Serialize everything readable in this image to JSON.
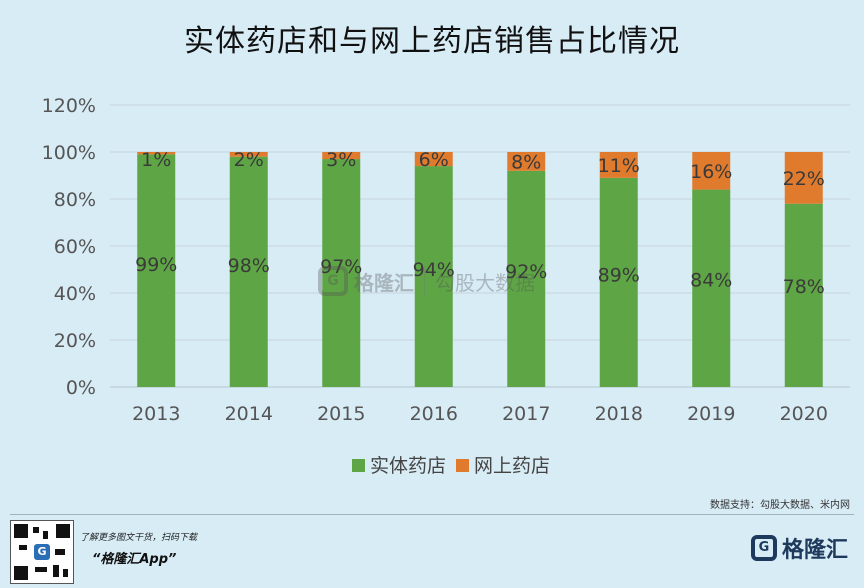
{
  "title": "实体药店和与网上药店销售占比情况",
  "source_note": "数据支持：勾股大数据、米内网",
  "promo": {
    "line1": "了解更多图文干货，扫码下载",
    "line2": "“格隆汇App”"
  },
  "brand": {
    "icon_letter": "G",
    "name": "格隆汇"
  },
  "watermark": {
    "brand": "格隆汇",
    "secondary": "勾股大数据"
  },
  "chart_data": {
    "type": "bar",
    "stacked": true,
    "categories": [
      "2013",
      "2014",
      "2015",
      "2016",
      "2017",
      "2018",
      "2019",
      "2020"
    ],
    "series": [
      {
        "name": "实体药店",
        "color": "#5ea545",
        "values": [
          99,
          98,
          97,
          94,
          92,
          89,
          84,
          78
        ],
        "labels": [
          "99%",
          "98%",
          "97%",
          "94%",
          "92%",
          "89%",
          "84%",
          "78%"
        ]
      },
      {
        "name": "网上药店",
        "color": "#e07b2e",
        "values": [
          1,
          2,
          3,
          6,
          8,
          11,
          16,
          22
        ],
        "labels": [
          "1%",
          "2%",
          "3%",
          "6%",
          "8%",
          "11%",
          "16%",
          "22%"
        ]
      }
    ],
    "ylim": [
      0,
      120
    ],
    "yticks": [
      0,
      20,
      40,
      60,
      80,
      100,
      120
    ],
    "ytick_labels": [
      "0%",
      "20%",
      "40%",
      "60%",
      "80%",
      "100%",
      "120%"
    ],
    "grid": true,
    "legend_position": "bottom"
  }
}
